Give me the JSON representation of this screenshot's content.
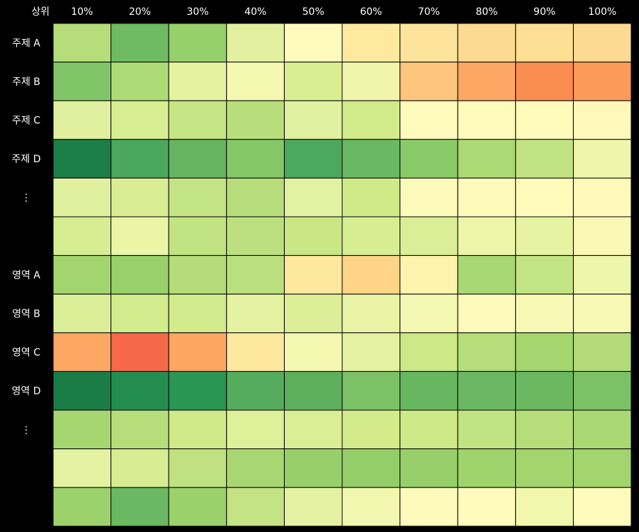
{
  "chart_data": {
    "type": "heatmap",
    "corner_label": "상위",
    "columns": [
      "10%",
      "20%",
      "30%",
      "40%",
      "50%",
      "60%",
      "70%",
      "80%",
      "90%",
      "100%"
    ],
    "rows": [
      "주제 A",
      "주제 B",
      "주제 C",
      "주제 D",
      "⋮",
      "",
      "영역 A",
      "영역 B",
      "영역 C",
      "영역 D",
      "⋮",
      "",
      ""
    ],
    "colors": [
      [
        "#b5dd79",
        "#6fbb63",
        "#96d06a",
        "#e2f09f",
        "#fffbbd",
        "#fee99f",
        "#fde39b",
        "#fdda91",
        "#fedf93",
        "#fdda91"
      ],
      [
        "#80c567",
        "#aedb76",
        "#e5f2a0",
        "#f5f8b0",
        "#d9ee91",
        "#eff6ab",
        "#fec57c",
        "#fda764",
        "#f98d52",
        "#fc9a5a"
      ],
      [
        "#e0f09e",
        "#d8ee93",
        "#c6e686",
        "#b8de7c",
        "#e1f0a1",
        "#d2eb8a",
        "#fffbbc",
        "#fefbbb",
        "#fffbbb",
        "#fef9ba"
      ],
      [
        "#1b7d47",
        "#4aa75d",
        "#64b460",
        "#84c767",
        "#4ca85e",
        "#6ab862",
        "#8acb69",
        "#abd974",
        "#c2e384",
        "#eff6ab"
      ],
      [
        "#e0f09f",
        "#d8ed94",
        "#c3e484",
        "#b6dd7b",
        "#e3f1a2",
        "#d0ea8a",
        "#fcfbb9",
        "#fdfbba",
        "#fefbbb",
        "#fef9b9"
      ],
      [
        "#d6ed92",
        "#ebf5a6",
        "#c2e382",
        "#bce080",
        "#cae786",
        "#d6ed92",
        "#daee98",
        "#ecf5a8",
        "#e6f3a2",
        "#f9f9b5"
      ],
      [
        "#a2d56e",
        "#98d06b",
        "#b4dc79",
        "#bae07e",
        "#fee8a0",
        "#fed486",
        "#fff3ad",
        "#a8d874",
        "#c3e484",
        "#eef6ab"
      ],
      [
        "#dcef98",
        "#d3ec8d",
        "#d2eb8c",
        "#e4f2a2",
        "#dcee98",
        "#eaf4a6",
        "#f5f8b2",
        "#fdfbbb",
        "#f9f9b6",
        "#f8f8b5"
      ],
      [
        "#fda764",
        "#f56849",
        "#fda663",
        "#fee8a0",
        "#f5f8b1",
        "#e3f1a1",
        "#cce887",
        "#b5dd7a",
        "#a5d66f",
        "#b3dc79"
      ],
      [
        "#1a7c46",
        "#238e50",
        "#2b9553",
        "#56ac5d",
        "#5dae5d",
        "#7cc165",
        "#67b660",
        "#6cb862",
        "#6bb861",
        "#7cc165"
      ],
      [
        "#a6d670",
        "#b5dd7a",
        "#d0ea8a",
        "#dff09b",
        "#d9ee95",
        "#d3eb8b",
        "#cde988",
        "#c1e382",
        "#b5dd7a",
        "#aad873"
      ],
      [
        "#e3f1a1",
        "#d8ed93",
        "#bfe182",
        "#a8d772",
        "#97d06a",
        "#94ce69",
        "#97cf6a",
        "#9fd36c",
        "#a3d46e",
        "#a3d46e"
      ],
      [
        "#9cd26c",
        "#6ab862",
        "#9ad16b",
        "#c3e384",
        "#e4f2a2",
        "#f1f7ae",
        "#fcfbbb",
        "#fffbbc",
        "#f2f7ae",
        "#fffbbd"
      ]
    ]
  }
}
